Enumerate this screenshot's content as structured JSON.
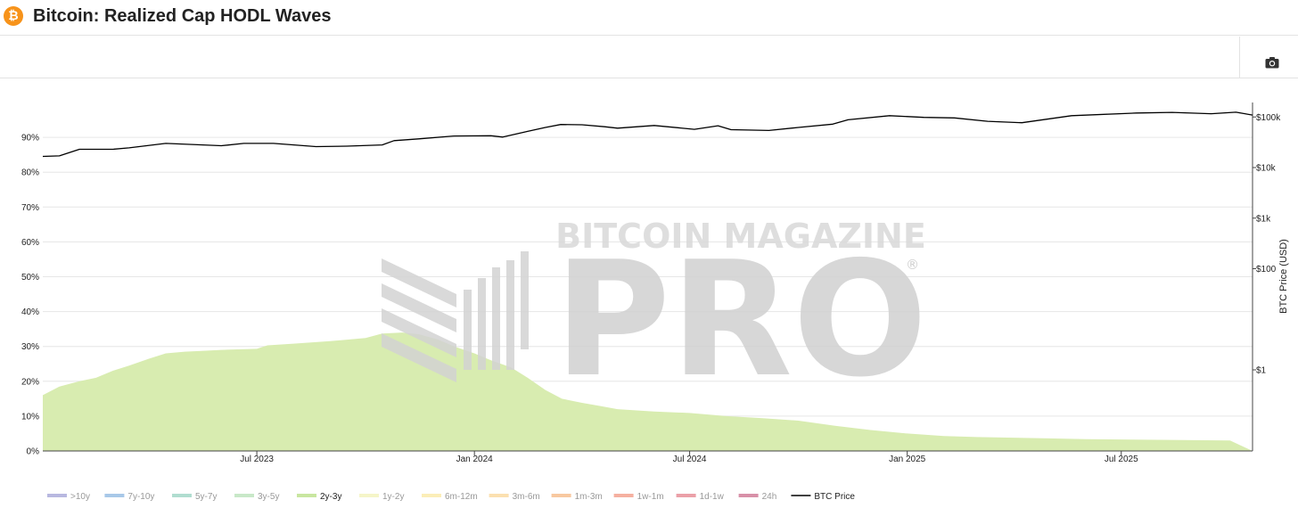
{
  "header": {
    "title": "Bitcoin: Realized Cap HODL Waves",
    "logo_glyph": "₿",
    "logo_color": "#f7931a"
  },
  "toolbar": {
    "screenshot_icon": "camera-icon"
  },
  "watermark": {
    "top_text": "BITCOIN MAGAZINE",
    "main_text": "PRO",
    "registered": "®"
  },
  "chart_data": {
    "type": "area",
    "x_ticks": [
      "Jul 2023",
      "Jan 2024",
      "Jul 2024",
      "Jan 2025",
      "Jul 2025"
    ],
    "y_left": {
      "ticks": [
        "0%",
        "10%",
        "20%",
        "30%",
        "40%",
        "50%",
        "60%",
        "70%",
        "80%",
        "90%"
      ],
      "range": [
        0,
        100
      ]
    },
    "y_right": {
      "label": "BTC Price (USD)",
      "scale": "log",
      "ticks": [
        "$1",
        "$100",
        "$1k",
        "$10k",
        "$100k"
      ]
    },
    "series": [
      {
        "name": "2y-3y",
        "kind": "area",
        "color": "#d8ecb0",
        "x": [
          "2023-01-01",
          "2023-01-15",
          "2023-02-01",
          "2023-02-15",
          "2023-03-01",
          "2023-03-15",
          "2023-04-01",
          "2023-04-15",
          "2023-05-01",
          "2023-05-15",
          "2023-06-01",
          "2023-07-01",
          "2023-07-10",
          "2023-08-01",
          "2023-09-01",
          "2023-10-01",
          "2023-10-15",
          "2023-11-01",
          "2023-11-15",
          "2023-12-01",
          "2023-12-15",
          "2024-01-01",
          "2024-01-15",
          "2024-02-01",
          "2024-02-15",
          "2024-03-01",
          "2024-03-15",
          "2024-04-01",
          "2024-04-15",
          "2024-05-01",
          "2024-06-01",
          "2024-07-01",
          "2024-08-01",
          "2024-09-01",
          "2024-10-01",
          "2024-11-01",
          "2024-12-01",
          "2025-01-01",
          "2025-02-01",
          "2025-03-01",
          "2025-04-01",
          "2025-05-01",
          "2025-06-01",
          "2025-07-01",
          "2025-08-01",
          "2025-09-01",
          "2025-10-01"
        ],
        "values": [
          16,
          18.5,
          20,
          21,
          23,
          24.5,
          26.5,
          28,
          28.5,
          28.7,
          29,
          29.3,
          30.3,
          30.8,
          31.5,
          32.4,
          33.7,
          34,
          33.5,
          32,
          30,
          28,
          26,
          24,
          21,
          17.5,
          15,
          13.8,
          13,
          12,
          11.3,
          10.9,
          10,
          9.4,
          8.7,
          7.2,
          6,
          5,
          4.3,
          4,
          3.8,
          3.6,
          3.4,
          3.3,
          3.2,
          3.1,
          3.0
        ]
      },
      {
        "name": "BTC Price",
        "kind": "line",
        "color": "#000000",
        "x": [
          "2023-01-01",
          "2023-01-15",
          "2023-02-01",
          "2023-03-01",
          "2023-03-15",
          "2023-04-15",
          "2023-06-01",
          "2023-06-20",
          "2023-07-15",
          "2023-08-20",
          "2023-09-15",
          "2023-10-15",
          "2023-10-25",
          "2023-11-15",
          "2023-12-15",
          "2024-01-15",
          "2024-01-25",
          "2024-02-15",
          "2024-03-01",
          "2024-03-14",
          "2024-04-01",
          "2024-04-20",
          "2024-05-01",
          "2024-06-01",
          "2024-07-05",
          "2024-07-25",
          "2024-08-05",
          "2024-09-06",
          "2024-10-01",
          "2024-10-30",
          "2024-11-12",
          "2024-12-17",
          "2025-01-15",
          "2025-02-10",
          "2025-03-10",
          "2025-04-08",
          "2025-05-20",
          "2025-07-14",
          "2025-08-13",
          "2025-09-15",
          "2025-10-06",
          "2025-10-20"
        ],
        "values": [
          16600,
          17000,
          23000,
          23000,
          24500,
          30000,
          27000,
          30000,
          30000,
          26000,
          26500,
          28000,
          34000,
          37000,
          42000,
          42500,
          40000,
          52000,
          62000,
          71000,
          70000,
          64000,
          60000,
          68000,
          57000,
          67000,
          56000,
          54000,
          62000,
          72000,
          88000,
          106000,
          98000,
          96000,
          82000,
          77000,
          106000,
          120000,
          123000,
          116000,
          124000,
          109000
        ]
      }
    ],
    "legend": [
      "> 10y",
      "7y-10y",
      "5y-7y",
      "3y-5y",
      "2y-3y",
      "1y-2y",
      "6m-12m",
      "3m-6m",
      "1m-3m",
      "1w-1m",
      "1d-1w",
      "24h",
      "BTC Price"
    ],
    "legend_display": [
      ">10y",
      "7y-10y",
      "5y-7y",
      "3y-5y",
      "2y-3y",
      "1y-2y",
      "6m-12m",
      "3m-6m",
      "1m-3m",
      "1w-1m",
      "1d-1w",
      "24h",
      "BTC Price"
    ],
    "legend_colors": [
      "#b8b8e0",
      "#a8c8e8",
      "#b0ddd0",
      "#c8e8c8",
      "#c8e6a0",
      "#f5f5c8",
      "#fbeeb8",
      "#fbe0b0",
      "#f8c8a0",
      "#f5b0a0",
      "#eba0a8",
      "#d890a8",
      "#000000"
    ],
    "legend_inactive": [
      true,
      true,
      true,
      true,
      false,
      true,
      true,
      true,
      true,
      true,
      true,
      true,
      false
    ],
    "grid": true,
    "legend_position": "bottom"
  }
}
